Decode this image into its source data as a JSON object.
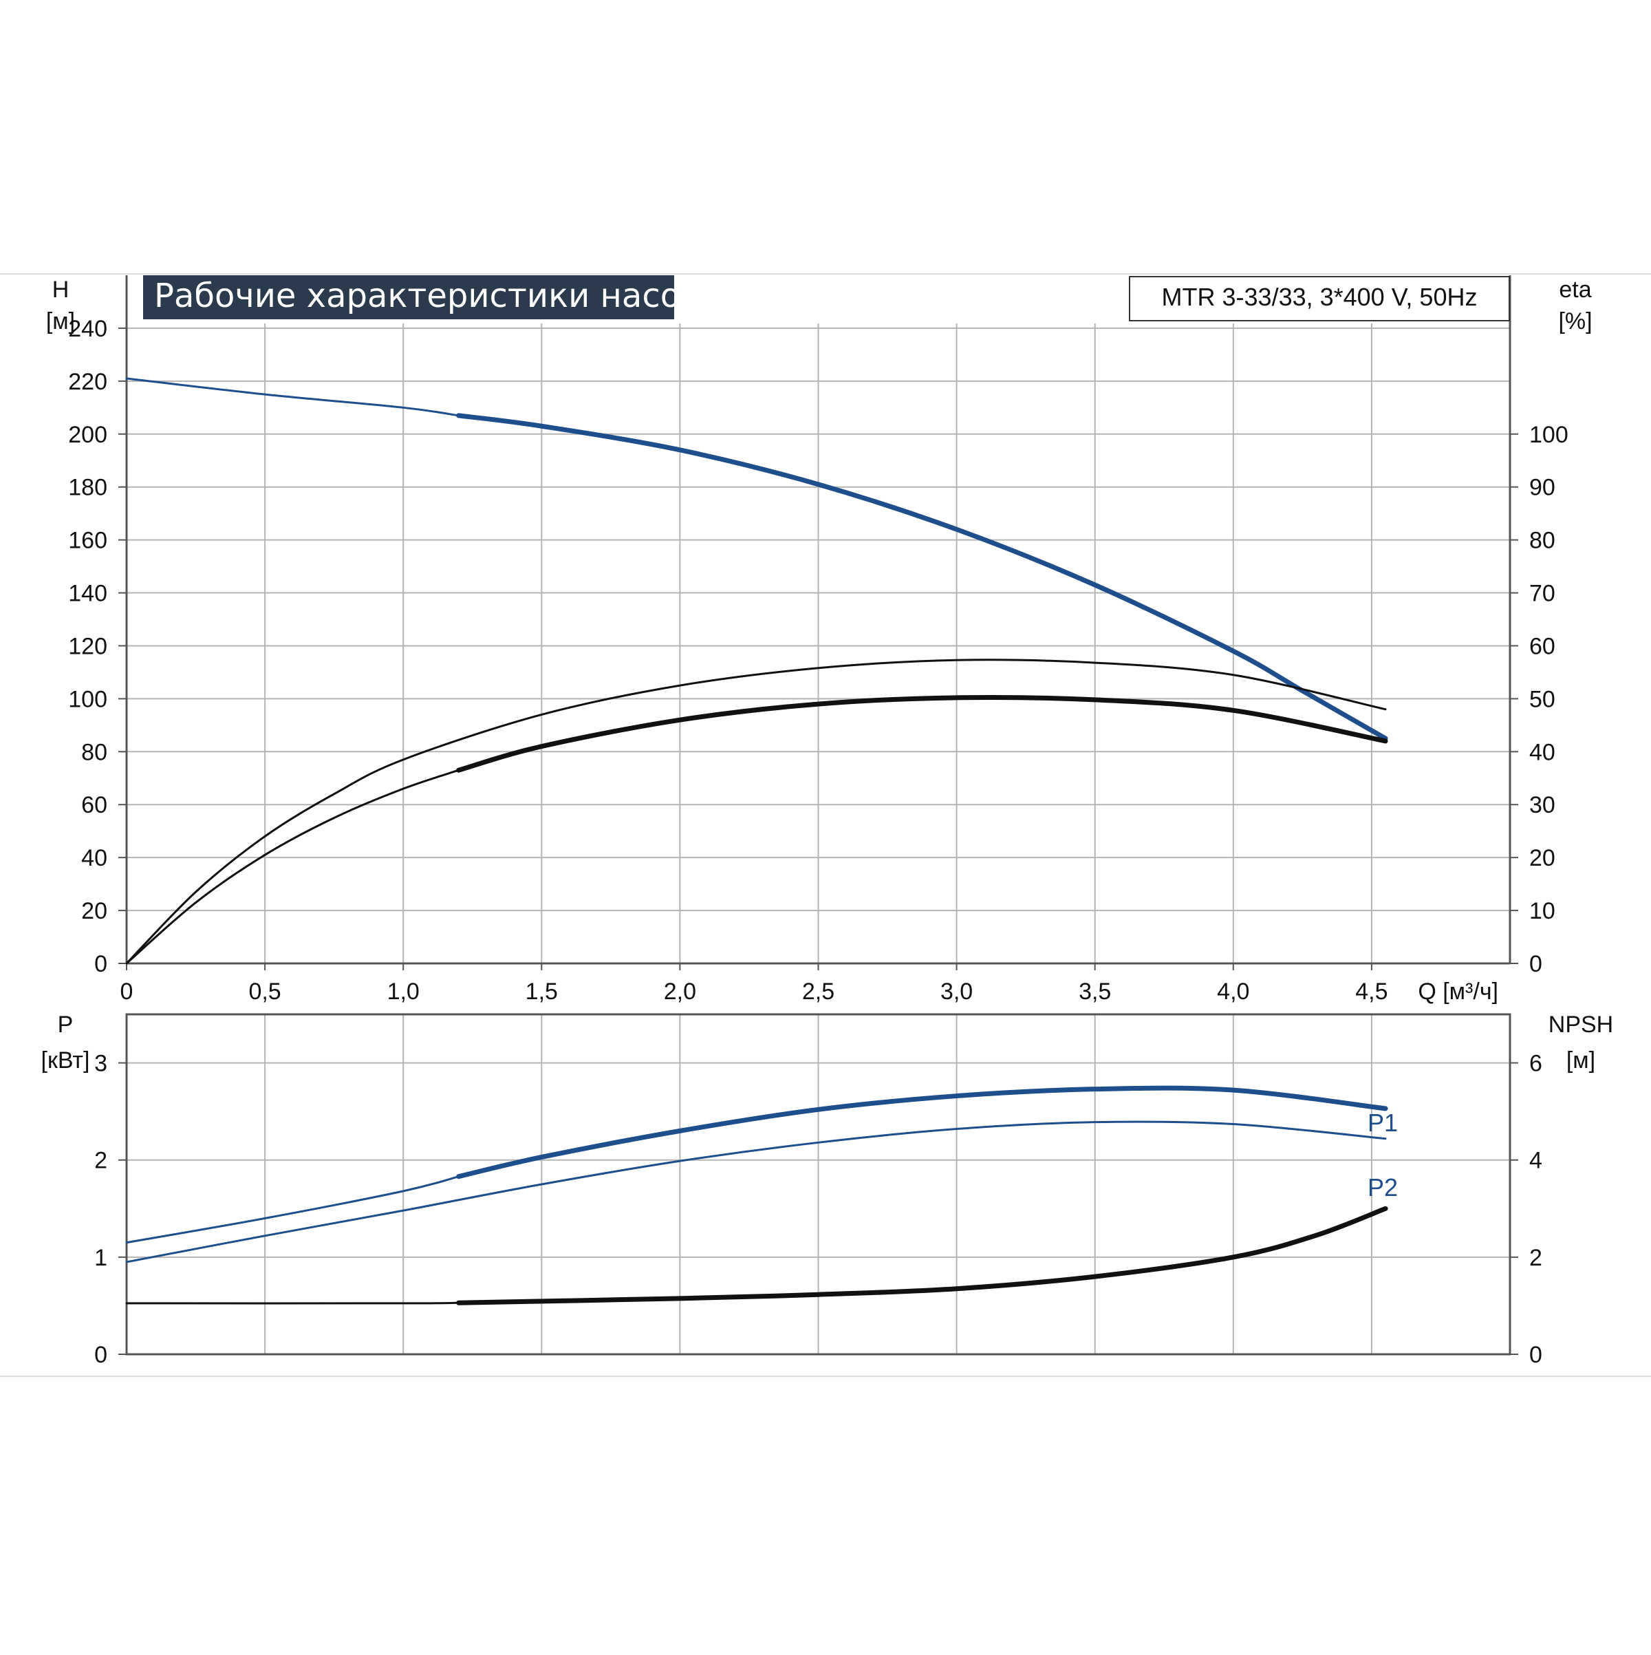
{
  "colors": {
    "blue": "#1f4e8c",
    "black": "#111111",
    "grid": "#b5b5b5",
    "title_bg": "#2b3a4d",
    "title_text": "#ffffff"
  },
  "chart_data": [
    {
      "type": "line",
      "title": "Рабочие характеристики насоса",
      "subtitle": "MTR 3-33/33, 3*400 V, 50Hz",
      "xlabel": "Q [м³/ч]",
      "ylabel_line1": "H",
      "ylabel_line2": "[м]",
      "y2label_line1": "eta",
      "y2label_line2": "[%]",
      "xlim": [
        0,
        5.0
      ],
      "ylim": [
        0,
        260
      ],
      "y2lim": [
        0,
        130
      ],
      "xticks": [
        0,
        0.5,
        1.0,
        1.5,
        2.0,
        2.5,
        3.0,
        3.5,
        4.0,
        4.5
      ],
      "xtick_labels": [
        "0",
        "0,5",
        "1,0",
        "1,5",
        "2,0",
        "2,5",
        "3,0",
        "3,5",
        "4,0",
        "4,5"
      ],
      "yticks": [
        0,
        20,
        40,
        60,
        80,
        100,
        120,
        140,
        160,
        180,
        200,
        220,
        240
      ],
      "y2ticks": [
        0,
        10,
        20,
        30,
        40,
        50,
        60,
        70,
        80,
        90,
        100
      ],
      "grid": true,
      "series": [
        {
          "axis": "left",
          "color": "#1f4e8c",
          "thick_from": 1.2,
          "x": [
            0,
            0.5,
            1.0,
            1.2,
            1.5,
            2.0,
            2.5,
            3.0,
            3.5,
            4.0,
            4.25,
            4.55
          ],
          "y": [
            221,
            215,
            210,
            207,
            203,
            194,
            181,
            164,
            143,
            118,
            103,
            85
          ]
        },
        {
          "axis": "right",
          "color": "#111111",
          "thick_from": 99,
          "x": [
            0,
            0.25,
            0.5,
            0.75,
            1.0,
            1.5,
            2.0,
            2.5,
            3.0,
            3.5,
            4.0,
            4.55
          ],
          "y": [
            0,
            13.5,
            24,
            32,
            38.5,
            47,
            52.5,
            55.8,
            57.3,
            56.8,
            54.5,
            48
          ]
        },
        {
          "axis": "right",
          "color": "#111111",
          "thick_from": 1.2,
          "x": [
            0,
            0.25,
            0.5,
            0.75,
            1.0,
            1.2,
            1.5,
            2.0,
            2.5,
            3.0,
            3.5,
            4.0,
            4.55
          ],
          "y": [
            0,
            11.5,
            20.5,
            27.5,
            33,
            36.5,
            41,
            46,
            49,
            50.2,
            49.8,
            47.8,
            42
          ]
        }
      ]
    },
    {
      "type": "line",
      "ylabel_line1": "P",
      "ylabel_line2": "[кВт]",
      "y2label_line1": "NPSH",
      "y2label_line2": "[м]",
      "xlim": [
        0,
        5.0
      ],
      "ylim": [
        0,
        3.5
      ],
      "y2lim": [
        0,
        7
      ],
      "yticks": [
        0,
        1,
        2,
        3
      ],
      "y2ticks": [
        0,
        2,
        4,
        6
      ],
      "grid": true,
      "series": [
        {
          "name": "P1",
          "axis": "left",
          "color": "#1f4e8c",
          "thick_from": 1.2,
          "x": [
            0,
            0.5,
            1.0,
            1.2,
            1.5,
            2.0,
            2.5,
            3.0,
            3.5,
            4.0,
            4.55
          ],
          "y": [
            1.15,
            1.4,
            1.68,
            1.83,
            2.03,
            2.3,
            2.52,
            2.66,
            2.73,
            2.72,
            2.53
          ]
        },
        {
          "name": "P2",
          "axis": "left",
          "color": "#1f4e8c",
          "thick_from": 99,
          "x": [
            0,
            0.5,
            1.0,
            1.5,
            2.0,
            2.5,
            3.0,
            3.5,
            4.0,
            4.55
          ],
          "y": [
            0.95,
            1.22,
            1.48,
            1.75,
            1.99,
            2.18,
            2.32,
            2.39,
            2.37,
            2.22
          ]
        },
        {
          "axis": "right",
          "color": "#111111",
          "thick_from": 1.2,
          "x": [
            0,
            1.0,
            1.2,
            2.0,
            2.5,
            3.0,
            3.5,
            4.0,
            4.3,
            4.55
          ],
          "y": [
            1.05,
            1.05,
            1.06,
            1.15,
            1.23,
            1.35,
            1.6,
            2.0,
            2.45,
            3.0
          ]
        }
      ]
    }
  ]
}
